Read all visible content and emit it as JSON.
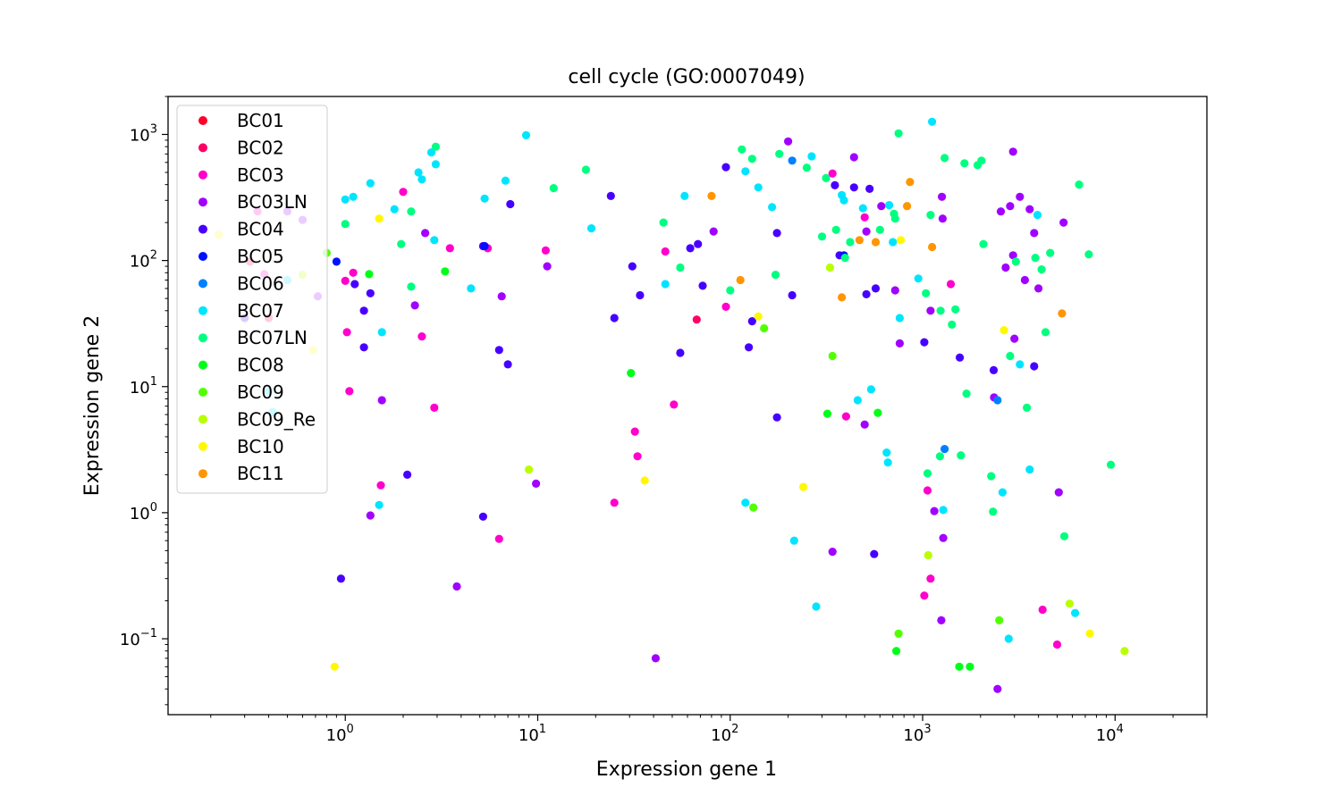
{
  "chart_data": {
    "type": "scatter",
    "title": "cell cycle (GO:0007049)",
    "xlabel": "Expression gene 1",
    "ylabel": "Expression gene 2",
    "xscale": "log",
    "yscale": "log",
    "xlim": [
      0.12,
      30000
    ],
    "ylim": [
      0.025,
      2000
    ],
    "x_tick_labels": [
      {
        "value": 1,
        "base": "10",
        "exp": "0"
      },
      {
        "value": 10,
        "base": "10",
        "exp": "1"
      },
      {
        "value": 100,
        "base": "10",
        "exp": "2"
      },
      {
        "value": 1000,
        "base": "10",
        "exp": "3"
      },
      {
        "value": 10000,
        "base": "10",
        "exp": "4"
      }
    ],
    "y_tick_labels": [
      {
        "value": 0.1,
        "base": "10",
        "exp": "−1"
      },
      {
        "value": 1,
        "base": "10",
        "exp": "0"
      },
      {
        "value": 10,
        "base": "10",
        "exp": "1"
      },
      {
        "value": 100,
        "base": "10",
        "exp": "2"
      },
      {
        "value": 1000,
        "base": "10",
        "exp": "3"
      }
    ],
    "grid": false,
    "legend_position": "top-left",
    "series": [
      {
        "name": "BC01",
        "color": "#ff0029",
        "points": []
      },
      {
        "name": "BC02",
        "color": "#ff0066",
        "points": [
          [
            0.32,
            98
          ],
          [
            0.4,
            35
          ],
          [
            67,
            34
          ]
        ]
      },
      {
        "name": "BC03",
        "color": "#ff00cc",
        "points": [
          [
            0.35,
            245
          ],
          [
            0.38,
            78
          ],
          [
            1.0,
            69
          ],
          [
            1.02,
            27
          ],
          [
            1.05,
            9.2
          ],
          [
            1.1,
            80
          ],
          [
            1.53,
            1.65
          ],
          [
            2.0,
            350
          ],
          [
            2.5,
            25
          ],
          [
            2.9,
            6.8
          ],
          [
            3.5,
            125
          ],
          [
            5.5,
            125
          ],
          [
            6.3,
            0.62
          ],
          [
            11,
            120
          ],
          [
            25,
            1.2
          ],
          [
            32,
            4.4
          ],
          [
            33,
            2.8
          ],
          [
            46,
            118
          ],
          [
            51,
            7.2
          ],
          [
            95,
            43
          ],
          [
            340,
            490
          ],
          [
            400,
            5.8
          ],
          [
            500,
            220
          ],
          [
            1100,
            0.3
          ],
          [
            1060,
            1.5
          ],
          [
            1020,
            0.22
          ],
          [
            1400,
            65
          ],
          [
            4200,
            0.17
          ],
          [
            5000,
            0.09
          ]
        ]
      },
      {
        "name": "BC03LN",
        "color": "#a100ff",
        "points": [
          [
            0.5,
            245
          ],
          [
            0.6,
            210
          ],
          [
            0.72,
            52
          ],
          [
            1.35,
            0.95
          ],
          [
            1.55,
            7.8
          ],
          [
            2.3,
            44
          ],
          [
            2.6,
            165
          ],
          [
            3.8,
            0.26
          ],
          [
            6.5,
            52
          ],
          [
            9.8,
            1.7
          ],
          [
            11.2,
            90
          ],
          [
            41,
            0.07
          ],
          [
            82,
            170
          ],
          [
            200,
            880
          ],
          [
            340,
            0.49
          ],
          [
            440,
            660
          ],
          [
            510,
            170
          ],
          [
            500,
            5
          ],
          [
            610,
            270
          ],
          [
            760,
            22
          ],
          [
            720,
            58
          ],
          [
            1150,
            1.03
          ],
          [
            1280,
            0.63
          ],
          [
            1250,
            0.14
          ],
          [
            1270,
            215
          ],
          [
            1260,
            320
          ],
          [
            1100,
            40
          ],
          [
            2350,
            8.2
          ],
          [
            2450,
            0.04
          ],
          [
            2550,
            245
          ],
          [
            2700,
            88
          ],
          [
            2850,
            270
          ],
          [
            2950,
            110
          ],
          [
            3000,
            24
          ],
          [
            3200,
            320
          ],
          [
            3400,
            70
          ],
          [
            3600,
            255
          ],
          [
            3800,
            165
          ],
          [
            4000,
            60
          ],
          [
            5100,
            1.45
          ],
          [
            5400,
            200
          ],
          [
            2950,
            730
          ]
        ]
      },
      {
        "name": "BC04",
        "color": "#4700ff",
        "points": [
          [
            0.3,
            35
          ],
          [
            0.95,
            0.3
          ],
          [
            1.12,
            65
          ],
          [
            1.25,
            40
          ],
          [
            1.25,
            20.5
          ],
          [
            1.35,
            55
          ],
          [
            2.1,
            2.0
          ],
          [
            5.2,
            0.93
          ],
          [
            5.2,
            130
          ],
          [
            6.3,
            19.5
          ],
          [
            7.0,
            15
          ],
          [
            7.2,
            280
          ],
          [
            24,
            325
          ],
          [
            25,
            35
          ],
          [
            31,
            90
          ],
          [
            34,
            53
          ],
          [
            55,
            18.5
          ],
          [
            62,
            125
          ],
          [
            68,
            135
          ],
          [
            72,
            63
          ],
          [
            95,
            550
          ],
          [
            125,
            20.5
          ],
          [
            130,
            33
          ],
          [
            175,
            5.7
          ],
          [
            175,
            165
          ],
          [
            210,
            53
          ],
          [
            350,
            395
          ],
          [
            370,
            110
          ],
          [
            440,
            380
          ],
          [
            530,
            370
          ],
          [
            560,
            0.47
          ],
          [
            570,
            60
          ],
          [
            510,
            54
          ],
          [
            1020,
            22.5
          ],
          [
            1560,
            17
          ],
          [
            2340,
            13.5
          ],
          [
            3800,
            14.5
          ]
        ]
      },
      {
        "name": "BC05",
        "color": "#0010ff",
        "points": [
          [
            0.9,
            98
          ],
          [
            5.3,
            130
          ],
          [
            390,
            110
          ]
        ]
      },
      {
        "name": "BC06",
        "color": "#0080ff",
        "points": [
          [
            210,
            620
          ],
          [
            1300,
            3.2
          ],
          [
            2450,
            7.8
          ]
        ]
      },
      {
        "name": "BC07",
        "color": "#00e5ff",
        "points": [
          [
            0.4,
            9.2
          ],
          [
            0.42,
            6.3
          ],
          [
            0.5,
            70
          ],
          [
            1.0,
            305
          ],
          [
            1.1,
            320
          ],
          [
            1.35,
            410
          ],
          [
            1.55,
            27
          ],
          [
            1.5,
            1.15
          ],
          [
            1.8,
            255
          ],
          [
            2.4,
            500
          ],
          [
            2.5,
            440
          ],
          [
            2.8,
            720
          ],
          [
            2.95,
            580
          ],
          [
            2.9,
            145
          ],
          [
            4.5,
            60
          ],
          [
            5.3,
            310
          ],
          [
            6.8,
            430
          ],
          [
            8.7,
            985
          ],
          [
            19,
            180
          ],
          [
            46,
            65
          ],
          [
            58,
            325
          ],
          [
            120,
            510
          ],
          [
            120,
            1.2
          ],
          [
            140,
            380
          ],
          [
            165,
            265
          ],
          [
            215,
            0.6
          ],
          [
            265,
            670
          ],
          [
            280,
            0.18
          ],
          [
            380,
            330
          ],
          [
            390,
            300
          ],
          [
            460,
            7.8
          ],
          [
            540,
            9.5
          ],
          [
            490,
            260
          ],
          [
            650,
            3
          ],
          [
            660,
            2.5
          ],
          [
            700,
            140
          ],
          [
            760,
            35
          ],
          [
            950,
            72
          ],
          [
            1120,
            1260
          ],
          [
            1280,
            1.05
          ],
          [
            2600,
            1.45
          ],
          [
            2800,
            0.1
          ],
          [
            3200,
            15
          ],
          [
            3600,
            2.2
          ],
          [
            3950,
            230
          ],
          [
            6200,
            0.16
          ],
          [
            670,
            275
          ]
        ]
      },
      {
        "name": "BC07LN",
        "color": "#00ff80",
        "points": [
          [
            1.0,
            195
          ],
          [
            1.95,
            135
          ],
          [
            2.2,
            62
          ],
          [
            2.2,
            245
          ],
          [
            2.95,
            800
          ],
          [
            12.1,
            375
          ],
          [
            17.8,
            525
          ],
          [
            45,
            200
          ],
          [
            55,
            88
          ],
          [
            100,
            58
          ],
          [
            115,
            760
          ],
          [
            130,
            640
          ],
          [
            172,
            77
          ],
          [
            180,
            700
          ],
          [
            250,
            545
          ],
          [
            300,
            155
          ],
          [
            315,
            450
          ],
          [
            355,
            175
          ],
          [
            395,
            105
          ],
          [
            420,
            140
          ],
          [
            600,
            175
          ],
          [
            710,
            235
          ],
          [
            720,
            215
          ],
          [
            750,
            1020
          ],
          [
            1040,
            55
          ],
          [
            1060,
            2.05
          ],
          [
            1100,
            230
          ],
          [
            1230,
            2.8
          ],
          [
            1240,
            40
          ],
          [
            1300,
            650
          ],
          [
            1420,
            31
          ],
          [
            1480,
            41
          ],
          [
            1580,
            2.85
          ],
          [
            1650,
            590
          ],
          [
            1690,
            8.8
          ],
          [
            1930,
            570
          ],
          [
            2020,
            620
          ],
          [
            2070,
            135
          ],
          [
            2270,
            1.95
          ],
          [
            2320,
            1.02
          ],
          [
            2850,
            17.5
          ],
          [
            3050,
            98
          ],
          [
            3480,
            6.8
          ],
          [
            3850,
            105
          ],
          [
            4150,
            85
          ],
          [
            4350,
            27
          ],
          [
            4600,
            115
          ],
          [
            5450,
            0.65
          ],
          [
            6500,
            400
          ],
          [
            7300,
            112
          ],
          [
            9500,
            2.4
          ]
        ]
      },
      {
        "name": "BC08",
        "color": "#00ff18",
        "points": [
          [
            1.33,
            78
          ],
          [
            3.3,
            82
          ],
          [
            30.5,
            12.8
          ],
          [
            320,
            6.1
          ],
          [
            585,
            6.2
          ],
          [
            730,
            0.08
          ],
          [
            1550,
            0.06
          ],
          [
            1760,
            0.06
          ]
        ]
      },
      {
        "name": "BC09",
        "color": "#52ff00",
        "points": [
          [
            0.8,
            115
          ],
          [
            132,
            1.1
          ],
          [
            150,
            29
          ],
          [
            340,
            17.5
          ],
          [
            750,
            0.11
          ],
          [
            2500,
            0.14
          ]
        ]
      },
      {
        "name": "BC09_Re",
        "color": "#b9ff00",
        "points": [
          [
            0.6,
            77
          ],
          [
            9.0,
            2.2
          ],
          [
            330,
            88
          ],
          [
            1070,
            0.46
          ],
          [
            5800,
            0.19
          ],
          [
            11200,
            0.08
          ]
        ]
      },
      {
        "name": "BC10",
        "color": "#fff800",
        "points": [
          [
            0.22,
            160
          ],
          [
            0.88,
            0.06
          ],
          [
            0.68,
            19.5
          ],
          [
            1.5,
            215
          ],
          [
            36,
            1.8
          ],
          [
            140,
            36
          ],
          [
            240,
            1.6
          ],
          [
            770,
            145
          ],
          [
            2650,
            28
          ],
          [
            7400,
            0.11
          ]
        ]
      },
      {
        "name": "BC11",
        "color": "#ff9500",
        "points": [
          [
            80,
            325
          ],
          [
            113,
            70
          ],
          [
            380,
            51
          ],
          [
            470,
            145
          ],
          [
            570,
            140
          ],
          [
            830,
            270
          ],
          [
            860,
            420
          ],
          [
            1120,
            128
          ],
          [
            5300,
            38
          ]
        ]
      }
    ]
  }
}
